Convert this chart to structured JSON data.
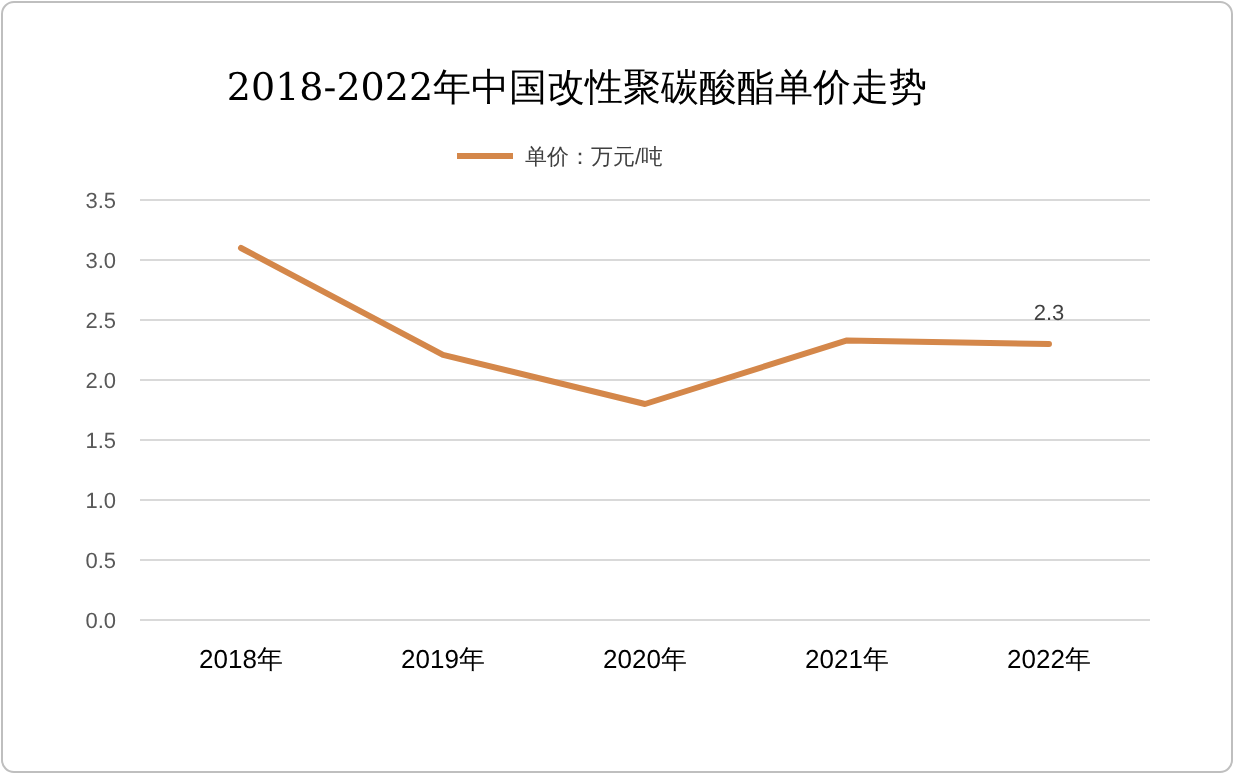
{
  "chart_data": {
    "type": "line",
    "title": "2018-2022年中国改性聚碳酸酯单价走势",
    "categories": [
      "2018年",
      "2019年",
      "2020年",
      "2021年",
      "2022年"
    ],
    "series": [
      {
        "name": "单价：万元/吨",
        "color": "#d4874a",
        "values": [
          3.1,
          2.21,
          1.8,
          2.33,
          2.3
        ],
        "value_labels": [
          null,
          null,
          null,
          null,
          "2.3"
        ]
      }
    ],
    "ylim": [
      0,
      3.5
    ],
    "yticks": [
      {
        "value": 0,
        "label": "0.0"
      },
      {
        "value": 0.5,
        "label": "0.5"
      },
      {
        "value": 1,
        "label": "1.0"
      },
      {
        "value": 1.5,
        "label": "1.5"
      },
      {
        "value": 2,
        "label": "2.0"
      },
      {
        "value": 2.5,
        "label": "2.5"
      },
      {
        "value": 3,
        "label": "3.0"
      },
      {
        "value": 3.5,
        "label": "3.5"
      }
    ],
    "grid": "y",
    "legend": "top",
    "marker": "none",
    "line_style": "solid"
  }
}
